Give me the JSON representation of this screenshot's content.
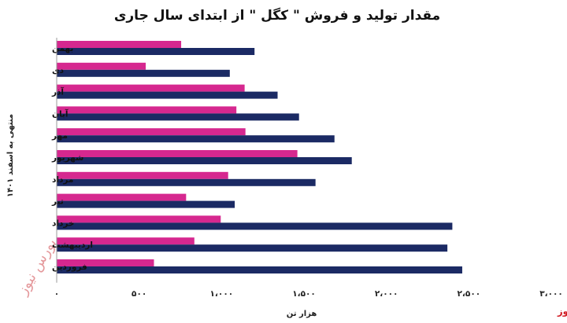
{
  "chart_data": {
    "type": "bar",
    "orientation": "horizontal",
    "title": "مقدار تولید و فروش \" کگل \" از ابتدای سال جاری",
    "xlabel": "هزار تن",
    "ylabel": "منتهی به اسفند ۱۴۰۱",
    "xlim": [
      0,
      3000
    ],
    "ticks": [
      {
        "value": 0,
        "label": "۰"
      },
      {
        "value": 500,
        "label": "۵۰۰"
      },
      {
        "value": 1000,
        "label": "۱،۰۰۰"
      },
      {
        "value": 1500,
        "label": "۱،۵۰۰"
      },
      {
        "value": 2000,
        "label": "۲،۰۰۰"
      },
      {
        "value": 2500,
        "label": "۲،۵۰۰"
      },
      {
        "value": 3000,
        "label": "۳،۰۰۰"
      }
    ],
    "grid": false,
    "legend": "none",
    "categories": [
      "بهمن",
      "دی",
      "آذر",
      "آبان",
      "مهر",
      "شهریور",
      "مرداد",
      "تیر",
      "خرداد",
      "اردیبهشت",
      "فروردین"
    ],
    "series": [
      {
        "color": "#d6288f",
        "values": [
          755,
          540,
          1140,
          1090,
          1145,
          1460,
          1040,
          785,
          995,
          835,
          590
        ]
      },
      {
        "color": "#1b2a64",
        "values": [
          1200,
          1050,
          1340,
          1470,
          1685,
          1790,
          1570,
          1080,
          2400,
          2370,
          2460
        ]
      }
    ]
  },
  "brand": "بورس نیوز",
  "watermark": "بورس نیوز",
  "colors": {
    "background": "#ffffff",
    "axis": "#9a9a9a",
    "brand": "#d0121b"
  }
}
